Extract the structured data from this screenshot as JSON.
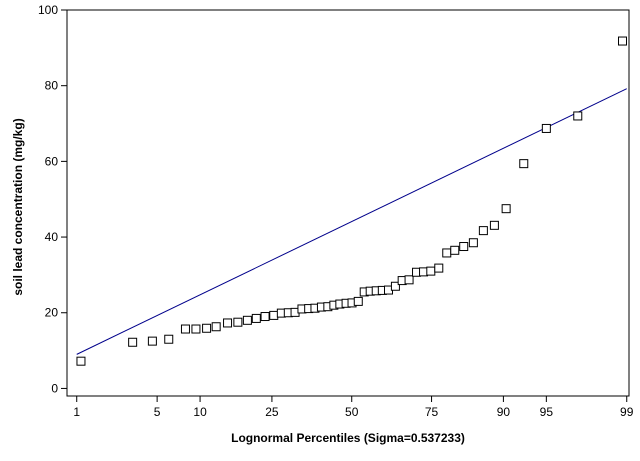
{
  "chart_data": {
    "type": "scatter",
    "title": "",
    "xlabel": "Lognormal Percentiles (Sigma=0.537233)",
    "ylabel": "soil lead concentration (mg/kg)",
    "x_scale": "probit",
    "x_ticks": [
      1,
      5,
      10,
      25,
      50,
      75,
      90,
      95,
      99
    ],
    "xlim": [
      0.8,
      99.05
    ],
    "ylim": [
      -2,
      100
    ],
    "y_ticks": [
      0,
      20,
      40,
      60,
      80,
      100
    ],
    "grid": false,
    "legend": "none",
    "colors": {
      "markers": "#000000",
      "fit_line": "#00008b",
      "frame": "#000000"
    },
    "series": [
      {
        "kind": "points",
        "marker": "open-square",
        "points": [
          [
            1.1,
            7.2
          ],
          [
            3.2,
            12.2
          ],
          [
            4.6,
            12.5
          ],
          [
            6.1,
            13.0
          ],
          [
            8.0,
            15.7
          ],
          [
            9.4,
            15.7
          ],
          [
            11.0,
            15.9
          ],
          [
            12.6,
            16.3
          ],
          [
            14.7,
            17.3
          ],
          [
            16.8,
            17.5
          ],
          [
            18.9,
            18.0
          ],
          [
            21.0,
            18.5
          ],
          [
            23.2,
            19.0
          ],
          [
            25.5,
            19.3
          ],
          [
            27.6,
            19.9
          ],
          [
            29.6,
            20.0
          ],
          [
            31.6,
            20.1
          ],
          [
            33.7,
            21.0
          ],
          [
            35.8,
            21.1
          ],
          [
            37.8,
            21.2
          ],
          [
            39.9,
            21.5
          ],
          [
            42.0,
            21.6
          ],
          [
            44.0,
            22.0
          ],
          [
            46.0,
            22.3
          ],
          [
            48.1,
            22.5
          ],
          [
            50.1,
            22.6
          ],
          [
            52.2,
            23.0
          ],
          [
            54.2,
            25.5
          ],
          [
            56.2,
            25.7
          ],
          [
            58.2,
            25.8
          ],
          [
            60.2,
            25.9
          ],
          [
            62.2,
            26.0
          ],
          [
            64.4,
            27.0
          ],
          [
            66.5,
            28.5
          ],
          [
            68.6,
            28.7
          ],
          [
            70.8,
            30.7
          ],
          [
            72.8,
            30.8
          ],
          [
            74.8,
            31.0
          ],
          [
            76.9,
            31.8
          ],
          [
            78.9,
            35.8
          ],
          [
            80.8,
            36.5
          ],
          [
            82.8,
            37.5
          ],
          [
            84.8,
            38.5
          ],
          [
            86.7,
            41.7
          ],
          [
            88.6,
            43.1
          ],
          [
            90.4,
            47.5
          ],
          [
            92.7,
            59.4
          ],
          [
            95.0,
            68.7
          ],
          [
            97.2,
            72.0
          ],
          [
            98.9,
            91.8
          ]
        ]
      },
      {
        "kind": "fit-line",
        "points": [
          [
            1,
            9.0
          ],
          [
            99,
            79.2
          ]
        ]
      }
    ]
  }
}
